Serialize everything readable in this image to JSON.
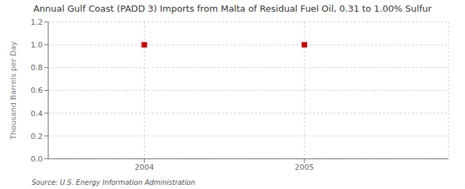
{
  "chart_data": {
    "type": "scatter",
    "title": "Annual Gulf Coast (PADD 3) Imports from Malta of Residual Fuel Oil, 0.31 to 1.00% Sulfur",
    "ylabel": "Thousand Barrels per Day",
    "annotations": [
      "Source: U.S. Energy Information Administration"
    ],
    "x": [
      2004,
      2005
    ],
    "values": [
      1.0,
      1.0
    ],
    "color": "#cc0000",
    "marker": "square",
    "xlim": [
      2003.4,
      2005.9
    ],
    "ylim": [
      0.0,
      1.2
    ],
    "xticks": [
      2004,
      2005
    ],
    "yticks": [
      {
        "value": 0.0,
        "label": "0.0"
      },
      0.2,
      0.4,
      0.6,
      0.8,
      {
        "value": 1.0,
        "label": "1.0"
      },
      1.2
    ],
    "grid": true
  }
}
